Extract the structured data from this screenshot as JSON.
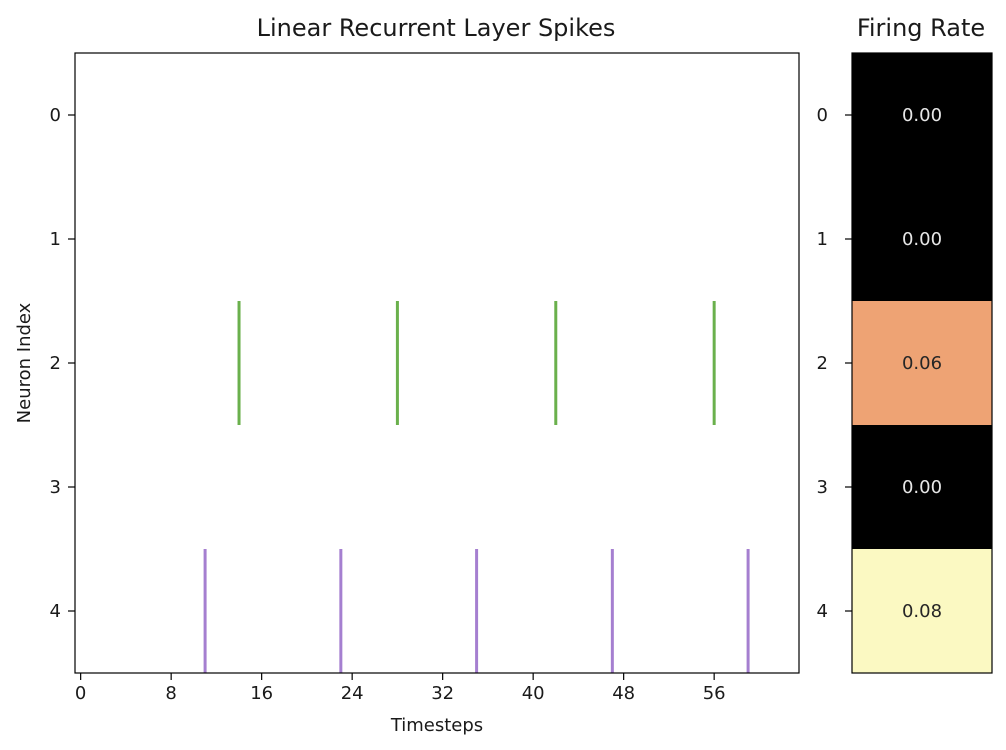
{
  "chart_data": [
    {
      "type": "scatter",
      "title": "Linear Recurrent Layer Spikes",
      "xlabel": "Timesteps",
      "ylabel": "Neuron Index",
      "xlim": [
        -0.5,
        63.5
      ],
      "ylim": [
        4.5,
        -0.5
      ],
      "x_ticks": [
        "0",
        "8",
        "16",
        "24",
        "32",
        "40",
        "48",
        "56"
      ],
      "y_ticks": [
        "0",
        "1",
        "2",
        "3",
        "4"
      ],
      "grid": false,
      "series": [
        {
          "neuron": 2,
          "color": "#6ab04c",
          "spike_times": [
            14,
            28,
            42,
            56
          ]
        },
        {
          "neuron": 4,
          "color": "#a57fd0",
          "spike_times": [
            11,
            23,
            35,
            47,
            59
          ]
        }
      ]
    },
    {
      "type": "heatmap",
      "title": "Firing Rate",
      "y_ticks": [
        "0",
        "1",
        "2",
        "3",
        "4"
      ],
      "values": [
        0.0,
        0.0,
        0.06,
        0.0,
        0.08
      ],
      "labels": [
        "0.00",
        "0.00",
        "0.06",
        "0.00",
        "0.08"
      ],
      "cell_colors": [
        "#000000",
        "#000000",
        "#eea374",
        "#000000",
        "#fbf9c2"
      ],
      "label_colors": [
        "#e6e6e6",
        "#e6e6e6",
        "#262626",
        "#e6e6e6",
        "#262626"
      ]
    }
  ]
}
